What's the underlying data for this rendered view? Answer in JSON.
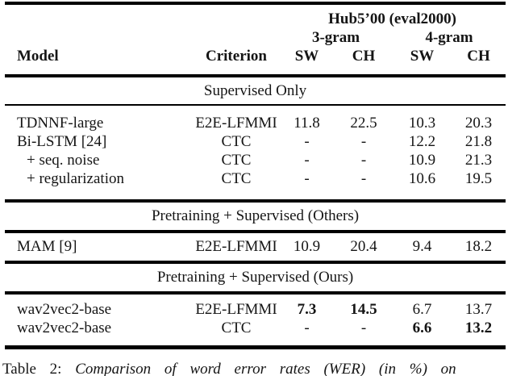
{
  "page": {
    "background": "#ffffff",
    "text_color": "#151515",
    "rule_color": "#000000"
  },
  "table": {
    "header": {
      "group_title": "Hub5’00 (eval2000)",
      "subgroup_3gram": "3-gram",
      "subgroup_4gram": "4-gram",
      "col_model": "Model",
      "col_criterion": "Criterion",
      "col_sw_3": "SW",
      "col_ch_3": "CH",
      "col_sw_4": "SW",
      "col_ch_4": "CH"
    },
    "sections": [
      {
        "title": "Supervised Only",
        "rows": [
          {
            "cells": [
              "TDNNF-large",
              "E2E-LFMMI",
              "11.8",
              "22.5",
              "10.3",
              "20.3"
            ]
          },
          {
            "cells": [
              "Bi-LSTM [24]",
              "CTC",
              "-",
              "-",
              "12.2",
              "21.8"
            ]
          },
          {
            "cells": [
              "+ seq. noise",
              "CTC",
              "-",
              "-",
              "10.9",
              "21.3"
            ],
            "indent": true
          },
          {
            "cells": [
              "+ regularization",
              "CTC",
              "-",
              "-",
              "10.6",
              "19.5"
            ],
            "indent": true
          }
        ]
      },
      {
        "title": "Pretraining + Supervised (Others)",
        "rows": [
          {
            "cells": [
              "MAM [9]",
              "E2E-LFMMI",
              "10.9",
              "20.4",
              "9.4",
              "18.2"
            ]
          }
        ]
      },
      {
        "title": "Pretraining + Supervised (Ours)",
        "rows": [
          {
            "cells": [
              "wav2vec2-base",
              "E2E-LFMMI",
              "7.3",
              "14.5",
              "6.7",
              "13.7"
            ],
            "bold": [
              false,
              false,
              true,
              true,
              false,
              false
            ]
          },
          {
            "cells": [
              "wav2vec2-base",
              "CTC",
              "-",
              "-",
              "6.6",
              "13.2"
            ],
            "bold": [
              false,
              false,
              false,
              false,
              true,
              true
            ]
          }
        ]
      }
    ]
  },
  "caption": {
    "label": "Table 2:",
    "text": "Comparison of word error rates (WER) (in %) on"
  }
}
